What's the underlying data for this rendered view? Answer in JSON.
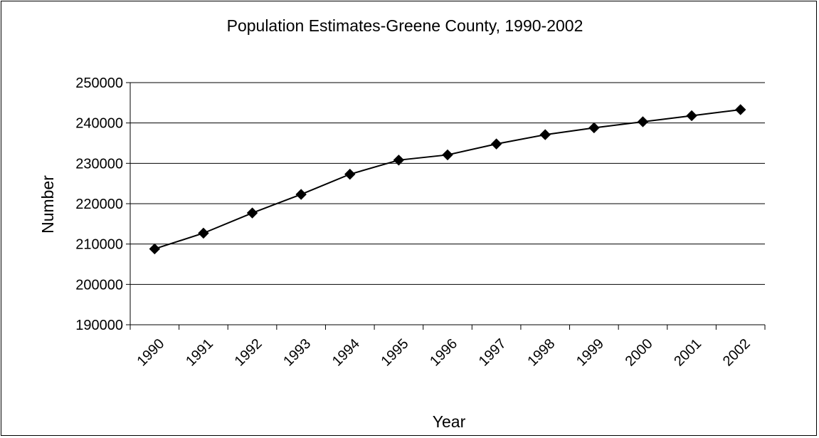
{
  "chart_data": {
    "type": "line",
    "title": "Population Estimates-Greene County, 1990-2002",
    "xlabel": "Year",
    "ylabel": "Number",
    "categories": [
      "1990",
      "1991",
      "1992",
      "1993",
      "1994",
      "1995",
      "1996",
      "1997",
      "1998",
      "1999",
      "2000",
      "2001",
      "2002"
    ],
    "ylim": [
      190000,
      250000
    ],
    "yticks": [
      190000,
      200000,
      210000,
      220000,
      230000,
      240000,
      250000
    ],
    "grid": "horizontal",
    "legend": "none",
    "series": [
      {
        "values": [
          208800,
          212700,
          217700,
          222300,
          227300,
          230800,
          232100,
          234800,
          237100,
          238800,
          240300,
          241800,
          243300
        ],
        "color": "#000000",
        "marker": "diamond"
      }
    ]
  }
}
